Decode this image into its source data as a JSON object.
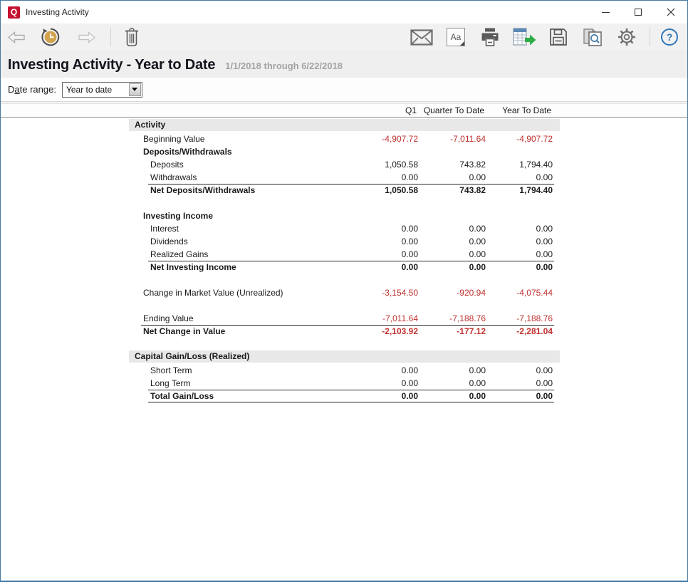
{
  "window": {
    "logo_text": "Q",
    "title": "Investing Activity",
    "controls": [
      "minimize",
      "maximize",
      "close"
    ]
  },
  "toolbar": {
    "left_icons": [
      "back-arrow",
      "history-clock",
      "forward-arrow",
      "delete-trash"
    ],
    "right_icons": [
      "email-envelope",
      "font-settings",
      "print",
      "export-data",
      "save-report",
      "find-preview",
      "settings-gear",
      "help"
    ],
    "aa_label": "Aa",
    "help_label": "?"
  },
  "report": {
    "title": "Investing Activity - Year to Date",
    "subtitle": "1/1/2018 through 6/22/2018"
  },
  "filters": {
    "date_range_label_pre": "D",
    "date_range_label_mnemonic": "a",
    "date_range_label_post": "te range:",
    "date_range_value": "Year to date"
  },
  "table": {
    "columns": [
      "Q1",
      "Quarter To Date",
      "Year To Date"
    ],
    "rows": [
      {
        "type": "section",
        "label": "Activity"
      },
      {
        "type": "data",
        "indent": 1,
        "label": "Beginning Value",
        "values": [
          "-4,907.72",
          "-7,011.64",
          "-4,907.72"
        ]
      },
      {
        "type": "subheader",
        "indent": 1,
        "label": "Deposits/Withdrawals"
      },
      {
        "type": "data",
        "indent": 2,
        "label": "Deposits",
        "values": [
          "1,050.58",
          "743.82",
          "1,794.40"
        ]
      },
      {
        "type": "data",
        "indent": 2,
        "label": "Withdrawals",
        "values": [
          "0.00",
          "0.00",
          "0.00"
        ]
      },
      {
        "type": "total",
        "indent": 2,
        "label": "Net Deposits/Withdrawals",
        "values": [
          "1,050.58",
          "743.82",
          "1,794.40"
        ]
      },
      {
        "type": "blank"
      },
      {
        "type": "subheader",
        "indent": 1,
        "label": "Investing Income"
      },
      {
        "type": "data",
        "indent": 2,
        "label": "Interest",
        "values": [
          "0.00",
          "0.00",
          "0.00"
        ]
      },
      {
        "type": "data",
        "indent": 2,
        "label": "Dividends",
        "values": [
          "0.00",
          "0.00",
          "0.00"
        ]
      },
      {
        "type": "data",
        "indent": 2,
        "label": "Realized Gains",
        "values": [
          "0.00",
          "0.00",
          "0.00"
        ]
      },
      {
        "type": "total",
        "indent": 2,
        "label": "Net Investing Income",
        "values": [
          "0.00",
          "0.00",
          "0.00"
        ]
      },
      {
        "type": "blank"
      },
      {
        "type": "data",
        "indent": 1,
        "label": "Change in Market Value (Unrealized)",
        "values": [
          "-3,154.50",
          "-920.94",
          "-4,075.44"
        ]
      },
      {
        "type": "blank"
      },
      {
        "type": "data",
        "indent": 1,
        "label": "Ending Value",
        "values": [
          "-7,011.64",
          "-7,188.76",
          "-7,188.76"
        ]
      },
      {
        "type": "total",
        "indent": 1,
        "label": "Net Change in Value",
        "values": [
          "-2,103.92",
          "-177.12",
          "-2,281.04"
        ]
      },
      {
        "type": "blank"
      },
      {
        "type": "section",
        "label": "Capital Gain/Loss (Realized)"
      },
      {
        "type": "data",
        "indent": 2,
        "label": "Short Term",
        "values": [
          "0.00",
          "0.00",
          "0.00"
        ]
      },
      {
        "type": "data",
        "indent": 2,
        "label": "Long Term",
        "values": [
          "0.00",
          "0.00",
          "0.00"
        ]
      },
      {
        "type": "total",
        "indent": 2,
        "label": "Total Gain/Loss",
        "values": [
          "0.00",
          "0.00",
          "0.00"
        ],
        "bottom_rule": true
      }
    ]
  },
  "colors": {
    "logo_red": "#c41230",
    "negative_red": "#c0322f",
    "window_border_blue": "#4479a1",
    "help_blue": "#2e77bb",
    "export_green": "#2fac46",
    "clock_gold": "#d2a24e",
    "section_bar_gray": "#e9e8e8"
  }
}
